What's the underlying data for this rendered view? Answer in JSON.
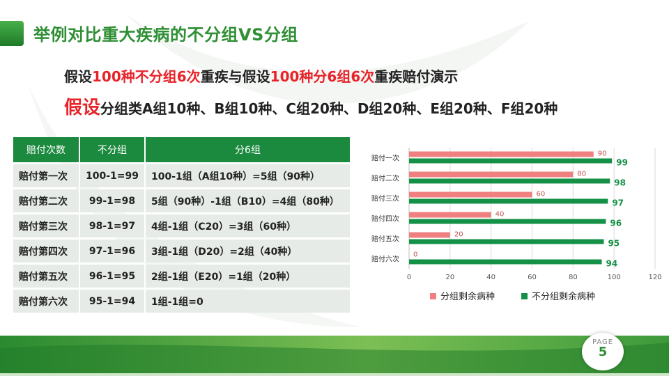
{
  "colors": {
    "accent_green": "#1b8a3e",
    "title_green": "#2f8f35",
    "highlight_red": "#e8232a",
    "series_grouped": "#f07f7f",
    "series_ungrouped": "#149146"
  },
  "slide": {
    "title": "举例对比重大疾病的不分组VS分组",
    "line1": {
      "p1": "假设",
      "p2": "100种不分组6次",
      "p3": "重疾与假设",
      "p4": "100种分6组6次",
      "p5": "重疾赔付演示"
    },
    "line2": {
      "big": "假设",
      "rest": "分组类A组10种、B组10种、C组20种、D组20种、E组20种、F组20种"
    },
    "page_label": "PAGE",
    "page_number": "5"
  },
  "table": {
    "headers": [
      "赔付次数",
      "不分组",
      "分6组"
    ],
    "rows": [
      [
        "赔付第一次",
        "100-1=99",
        "100-1组（A组10种）=5组（90种）"
      ],
      [
        "赔付第二次",
        "99-1=98",
        "5组（90种）-1组（B10）=4组（80种）"
      ],
      [
        "赔付第三次",
        "98-1=97",
        "4组-1组（C20）=3组（60种）"
      ],
      [
        "赔付第四次",
        "97-1=96",
        "3组-1组（D20）=2组（40种）"
      ],
      [
        "赔付第五次",
        "96-1=95",
        "2组-1组（E20）=1组（20种）"
      ],
      [
        "赔付第六次",
        "95-1=94",
        "1组-1组=0"
      ]
    ]
  },
  "chart_data": {
    "type": "bar",
    "orientation": "horizontal",
    "categories": [
      "赔付一次",
      "赔付二次",
      "赔付三次",
      "赔付四次",
      "赔付五次",
      "赔付六次"
    ],
    "series": [
      {
        "name": "分组剩余病种",
        "color": "#f07f7f",
        "values": [
          90,
          80,
          60,
          40,
          20,
          0
        ]
      },
      {
        "name": "不分组剩余病种",
        "color": "#149146",
        "values": [
          99,
          98,
          97,
          96,
          95,
          94
        ]
      }
    ],
    "xlim": [
      0,
      120
    ],
    "ticks": [
      0,
      20,
      40,
      60,
      80,
      100,
      120
    ],
    "grid": true,
    "legend_position": "bottom"
  }
}
